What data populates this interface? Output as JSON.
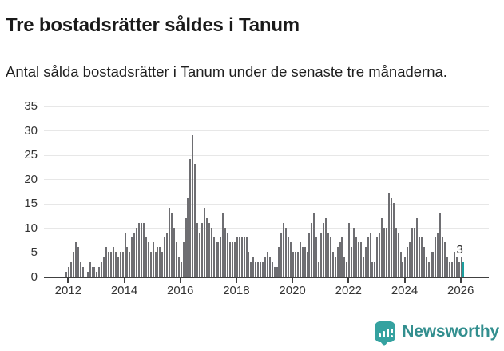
{
  "title": "Tre bostadsrätter såldes i Tanum",
  "subtitle": "Antal sålda bostadsrätter i Tanum under de senaste tre månaderna.",
  "footer": {
    "brand": "Newsworthy"
  },
  "colors": {
    "bar": "#6e6e72",
    "highlight": "#1d9f9f",
    "logo": "#35a2a0",
    "logo_text": "#338f8f",
    "grid": "#e7e7e7",
    "axis": "#404040"
  },
  "chart_data": {
    "type": "bar",
    "title": "Tre bostadsrätter såldes i Tanum",
    "subtitle": "Antal sålda bostadsrätter i Tanum under de senaste tre månaderna.",
    "xlabel": "",
    "ylabel": "",
    "start_month": "2011-12",
    "end_month": "2026-02",
    "ylim": [
      0,
      35
    ],
    "grid": true,
    "y_ticks": [
      "0",
      "5",
      "10",
      "15",
      "20",
      "25",
      "30",
      "35"
    ],
    "x_ticks": [
      "2012",
      "2014",
      "2016",
      "2018",
      "2020",
      "2022",
      "2024",
      "2026"
    ],
    "last_value_label": "3",
    "highlight_last": true,
    "values": [
      1,
      2,
      3,
      5,
      7,
      6,
      3,
      2,
      0,
      1,
      3,
      2,
      2,
      1,
      2,
      3,
      4,
      6,
      5,
      5,
      6,
      5,
      4,
      5,
      5,
      9,
      6,
      5,
      8,
      9,
      10,
      11,
      11,
      11,
      8,
      7,
      5,
      7,
      5,
      6,
      6,
      5,
      8,
      9,
      14,
      13,
      10,
      7,
      4,
      3,
      7,
      12,
      16,
      24,
      29,
      23,
      11,
      9,
      11,
      14,
      12,
      11,
      10,
      8,
      7,
      7,
      8,
      13,
      10,
      9,
      7,
      7,
      7,
      8,
      8,
      8,
      8,
      8,
      5,
      3,
      4,
      3,
      3,
      3,
      3,
      4,
      5,
      4,
      3,
      2,
      2,
      6,
      9,
      11,
      10,
      8,
      7,
      5,
      5,
      5,
      7,
      6,
      6,
      5,
      9,
      11,
      13,
      8,
      3,
      9,
      11,
      12,
      9,
      8,
      5,
      4,
      6,
      7,
      8,
      4,
      3,
      11,
      6,
      10,
      8,
      7,
      7,
      4,
      6,
      8,
      9,
      3,
      3,
      8,
      9,
      12,
      10,
      10,
      17,
      16,
      15,
      10,
      9,
      5,
      3,
      4,
      6,
      7,
      10,
      10,
      12,
      8,
      8,
      6,
      4,
      3,
      5,
      5,
      8,
      9,
      13,
      8,
      7,
      4,
      3,
      3,
      5,
      4,
      3,
      4,
      3
    ]
  }
}
